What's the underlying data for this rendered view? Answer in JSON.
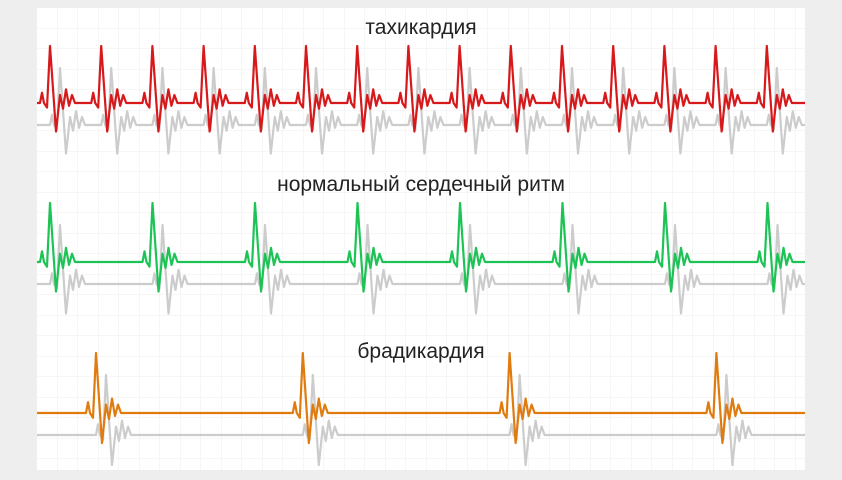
{
  "labels": {
    "tachycardia": "тахикардия",
    "normal": "нормальный сердечный ритм",
    "bradycardia": "брадикардия"
  }
}
